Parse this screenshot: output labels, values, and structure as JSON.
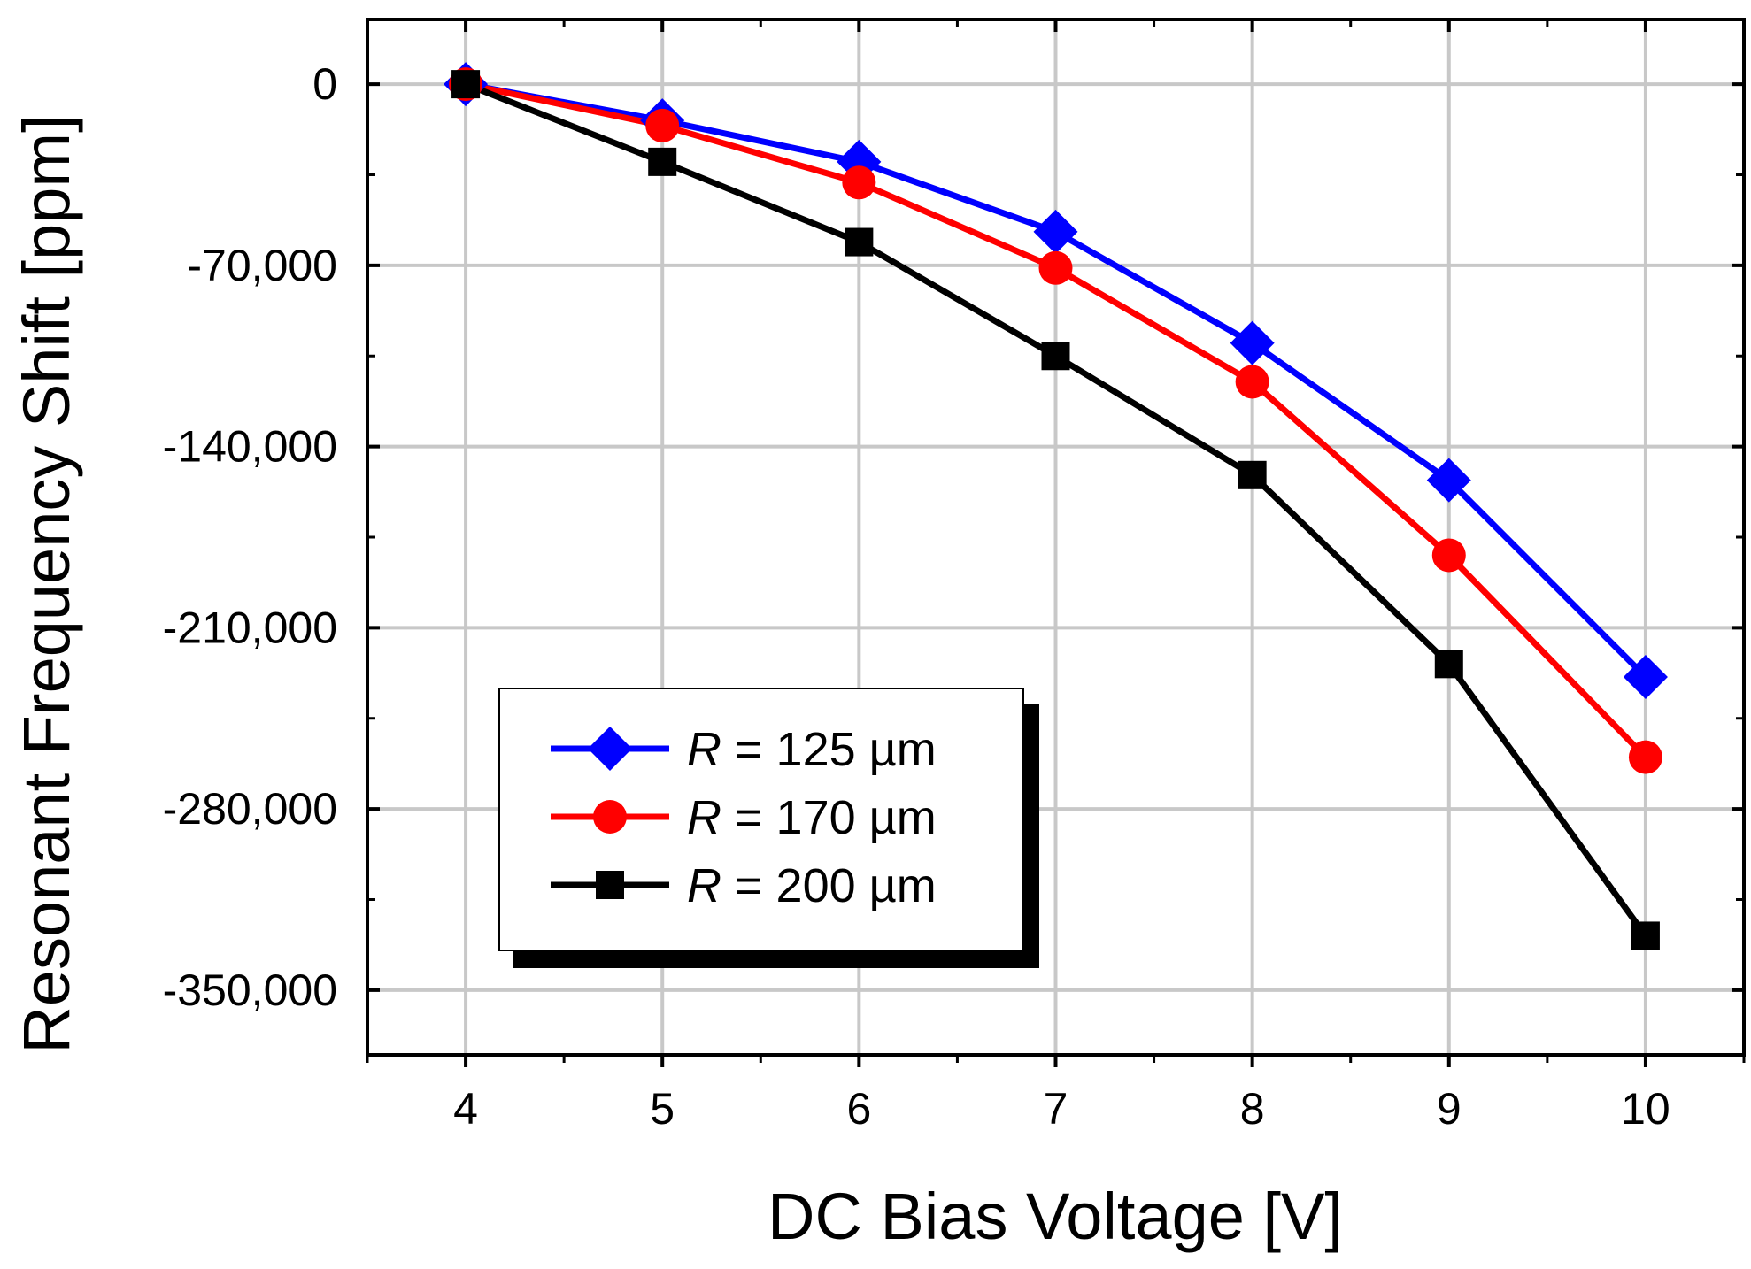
{
  "chart_data": {
    "type": "line",
    "xlabel": "DC Bias Voltage [V]",
    "ylabel": "Resonant Frequency Shift [ppm]",
    "xlim": [
      3.5,
      10.5
    ],
    "ylim": [
      -375000,
      25000
    ],
    "xticks": [
      4,
      5,
      6,
      7,
      8,
      9,
      10
    ],
    "xtick_labels": [
      "4",
      "5",
      "6",
      "7",
      "8",
      "9",
      "10"
    ],
    "yticks": [
      0,
      -70000,
      -140000,
      -210000,
      -280000,
      -350000
    ],
    "ytick_labels": [
      "0",
      "-70,000",
      "-140,000",
      "-210,000",
      "-280,000",
      "-350,000"
    ],
    "grid": true,
    "legend_position": "bottom-left",
    "x": [
      4,
      5,
      6,
      7,
      8,
      9,
      10
    ],
    "series": [
      {
        "name_italic": "R",
        "name_rest": " = 125 µm",
        "color": "#0000ff",
        "marker": "diamond",
        "values": [
          0,
          -14000,
          -30000,
          -57000,
          -100000,
          -153000,
          -229000
        ]
      },
      {
        "name_italic": "R",
        "name_rest": " = 170 µm",
        "color": "#ff0000",
        "marker": "circle",
        "values": [
          0,
          -16000,
          -38000,
          -71000,
          -115000,
          -182000,
          -260000
        ]
      },
      {
        "name_italic": "R",
        "name_rest": " = 200 µm",
        "color": "#000000",
        "marker": "square",
        "values": [
          0,
          -30000,
          -61000,
          -105000,
          -151000,
          -224000,
          -329000
        ]
      }
    ]
  }
}
